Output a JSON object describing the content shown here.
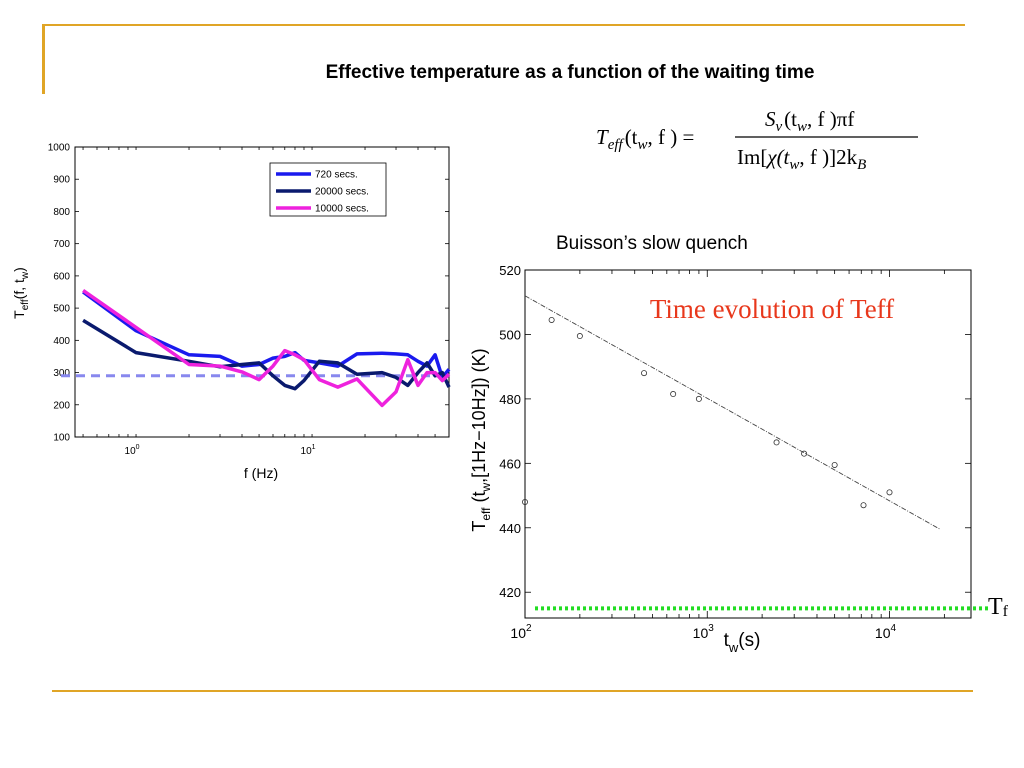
{
  "slide": {
    "title": "Effective temperature as a function of the waiting time",
    "buisson_label": "Buisson’s slow quench",
    "tf_label": "T",
    "tf_sub": "f",
    "colors": {
      "accent": "#e0a526",
      "tf_line": "#22dd22"
    }
  },
  "formula": {
    "lhs": "T",
    "lhs_sub": "eff",
    "lhs_args": "(t",
    "lhs_args_sub": "w",
    "lhs_args_end": ", f ) =",
    "num_s": "S",
    "num_s_sub": "v",
    "num_rest": "(t",
    "num_rest_sub": "w",
    "num_end": ", f )πf",
    "den_im": "Im[",
    "den_chi": "χ(t",
    "den_chi_sub": "w",
    "den_end": ", f )]2k",
    "den_k_sub": "B"
  },
  "chart_data": [
    {
      "type": "line",
      "xlabel": "f (Hz)",
      "ylabel": "T",
      "ylabel_sub1": "eff",
      "ylabel_mid": "(f, t",
      "ylabel_sub2": "w",
      "ylabel_end": ")",
      "xscale": "log",
      "xlim": [
        0.45,
        60
      ],
      "ylim": [
        100,
        1000
      ],
      "yticks": [
        1000,
        900,
        800,
        700,
        600,
        500,
        400,
        300,
        200,
        100
      ],
      "xticks": [
        {
          "value": 1,
          "base": "10",
          "exp": "0"
        },
        {
          "value": 10,
          "base": "10",
          "exp": "1"
        }
      ],
      "legend_position": "top-right",
      "series": [
        {
          "name": "720 secs.",
          "color": "#1a1aee",
          "points": [
            [
              0.5,
              550
            ],
            [
              1,
              430
            ],
            [
              2,
              355
            ],
            [
              3,
              350
            ],
            [
              4,
              320
            ],
            [
              5,
              325
            ],
            [
              6,
              345
            ],
            [
              7,
              350
            ],
            [
              8,
              362
            ],
            [
              9,
              338
            ],
            [
              11,
              330
            ],
            [
              14,
              320
            ],
            [
              18,
              358
            ],
            [
              25,
              360
            ],
            [
              30,
              358
            ],
            [
              35,
              355
            ],
            [
              40,
              335
            ],
            [
              45,
              320
            ],
            [
              50,
              355
            ],
            [
              55,
              285
            ],
            [
              60,
              310
            ]
          ]
        },
        {
          "name": "20000 secs.",
          "color": "#0a1a6e",
          "points": [
            [
              0.5,
              462
            ],
            [
              1,
              362
            ],
            [
              2,
              335
            ],
            [
              3,
              318
            ],
            [
              4,
              325
            ],
            [
              5,
              330
            ],
            [
              6,
              290
            ],
            [
              7,
              260
            ],
            [
              8,
              250
            ],
            [
              9,
              275
            ],
            [
              11,
              335
            ],
            [
              14,
              330
            ],
            [
              18,
              295
            ],
            [
              25,
              300
            ],
            [
              30,
              285
            ],
            [
              35,
              260
            ],
            [
              40,
              300
            ],
            [
              45,
              330
            ],
            [
              50,
              290
            ],
            [
              55,
              300
            ],
            [
              60,
              255
            ]
          ]
        },
        {
          "name": "10000 secs.",
          "color": "#ee22dd",
          "points": [
            [
              0.5,
              555
            ],
            [
              1,
              440
            ],
            [
              2,
              325
            ],
            [
              3,
              320
            ],
            [
              4,
              302
            ],
            [
              5,
              278
            ],
            [
              6,
              320
            ],
            [
              7,
              368
            ],
            [
              8,
              355
            ],
            [
              9,
              340
            ],
            [
              11,
              278
            ],
            [
              14,
              255
            ],
            [
              18,
              280
            ],
            [
              25,
              198
            ],
            [
              30,
              240
            ],
            [
              35,
              340
            ],
            [
              40,
              260
            ],
            [
              45,
              300
            ],
            [
              50,
              300
            ],
            [
              55,
              275
            ],
            [
              60,
              295
            ]
          ]
        }
      ],
      "reference_line": {
        "value": 290,
        "color": "#8888ee",
        "style": "dashed"
      }
    },
    {
      "type": "scatter",
      "xlabel": "t",
      "xlabel_sub": "w",
      "xlabel_end": "(s)",
      "ylabel": "T",
      "ylabel_sub1": "eff",
      "ylabel_mid": " (t",
      "ylabel_sub2": "w",
      "ylabel_end": ",[1Hz−10Hz])   (K)",
      "annotation": "Time evolution of Teff",
      "annotation_color": "#e8371b",
      "xscale": "log",
      "xlim": [
        100,
        28000
      ],
      "ylim": [
        412,
        520
      ],
      "yticks": [
        520,
        500,
        480,
        460,
        440,
        420
      ],
      "xticks": [
        {
          "value": 100,
          "base": "10",
          "exp": "2"
        },
        {
          "value": 1000,
          "base": "10",
          "exp": "3"
        },
        {
          "value": 10000,
          "base": "10",
          "exp": "4"
        }
      ],
      "points": [
        [
          100,
          448
        ],
        [
          140,
          504.5
        ],
        [
          200,
          499.5
        ],
        [
          450,
          488
        ],
        [
          650,
          481.5
        ],
        [
          900,
          480
        ],
        [
          2400,
          466.5
        ],
        [
          3400,
          463
        ],
        [
          5000,
          459.5
        ],
        [
          7200,
          447
        ],
        [
          10000,
          451
        ]
      ],
      "fit_line": [
        [
          100,
          512
        ],
        [
          19000,
          439.5
        ]
      ],
      "tf_value": 415
    }
  ]
}
